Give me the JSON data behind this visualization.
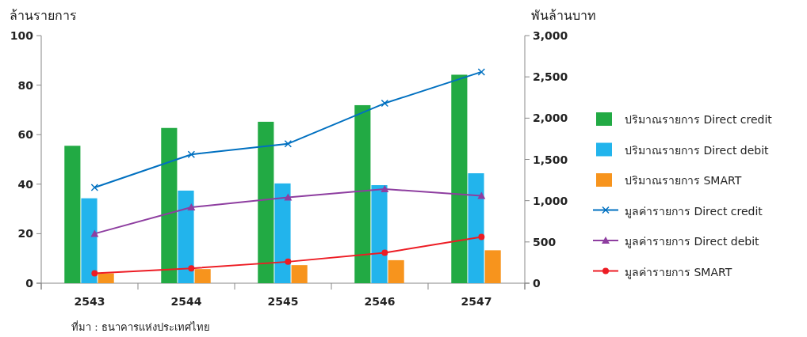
{
  "chart_data": {
    "type": "bar",
    "ylabel": "ล้านรายการ",
    "y2label": "พันล้านบาท",
    "categories": [
      "2543",
      "2544",
      "2545",
      "2546",
      "2547"
    ],
    "series": [
      {
        "name": "ปริมาณรายการ Direct credit",
        "color": "#22aa44",
        "values": [
          55.5,
          62.7,
          65.2,
          71.9,
          84.2
        ]
      },
      {
        "name": "ปริมาณรายการ Direct debit",
        "color": "#22b4ec",
        "values": [
          34.3,
          37.4,
          40.3,
          39.6,
          44.4
        ]
      },
      {
        "name": "ปริมาณรายการ SMART",
        "color": "#f7941d",
        "values": [
          4,
          5.7,
          7.3,
          9.3,
          13.3
        ]
      },
      {
        "name": "มูลค่ารายการ Direct credit",
        "type": "line",
        "axis": "y2",
        "marker": "cross",
        "color": "#0070c0",
        "values": [
          1160,
          1560,
          1690,
          2180,
          2560
        ]
      },
      {
        "name": "มูลค่ารายการ Direct debit",
        "type": "line",
        "axis": "y2",
        "marker": "triangle",
        "color": "#8e3ea0",
        "values": [
          600,
          920,
          1040,
          1140,
          1060
        ]
      },
      {
        "name": "มูลค่ารายการ SMART",
        "type": "line",
        "axis": "y2",
        "marker": "circle",
        "color": "#ed1c24",
        "values": [
          120,
          180,
          260,
          370,
          560
        ]
      }
    ],
    "ylim": [
      0,
      100
    ],
    "yticks": [
      0,
      20,
      40,
      60,
      80,
      100
    ],
    "y2lim": [
      0,
      3000
    ],
    "y2ticks": [
      0,
      {
        "value": 500,
        "label": "500"
      },
      {
        "value": 1000,
        "label": "1,000"
      },
      {
        "value": 1500,
        "label": "1,500"
      },
      {
        "value": 2000,
        "label": "2,000"
      },
      {
        "value": 2500,
        "label": "2,500"
      },
      {
        "value": 3000,
        "label": "3,000"
      }
    ],
    "legend": "right",
    "grid": false,
    "annotations": [
      "ที่มา : ธนาคารแห่งประเทศไทย"
    ]
  }
}
